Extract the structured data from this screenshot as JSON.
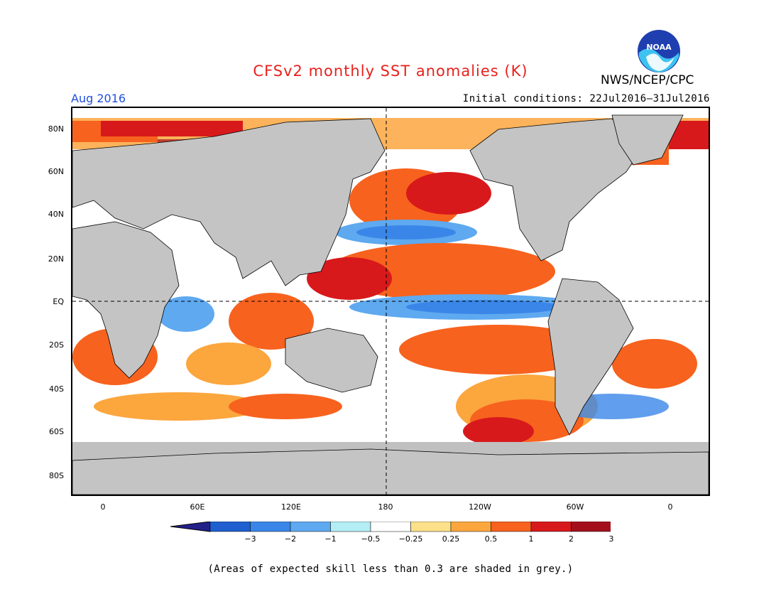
{
  "title": "CFSv2 monthly SST anomalies (K)",
  "agency": "NWS/NCEP/CPC",
  "month_label": "Aug 2016",
  "initial_conditions": "Initial conditions: 22Jul2016–31Jul2016",
  "logo_text": "NOAA",
  "footnote": "(Areas of expected skill less than 0.3 are shaded in grey.)",
  "lat_labels": [
    "80N",
    "60N",
    "40N",
    "20N",
    "EQ",
    "20S",
    "40S",
    "60S",
    "80S"
  ],
  "lon_labels": [
    "0",
    "60E",
    "120E",
    "180",
    "120W",
    "60W",
    "0"
  ],
  "colorbar": {
    "labels": [
      "−3",
      "−2",
      "−1",
      "−0.5",
      "−0.25",
      "0.25",
      "0.5",
      "1",
      "2",
      "3"
    ],
    "colors": [
      "#23208a",
      "#1f5fcf",
      "#3a86e8",
      "#5ea9f0",
      "#b4eef5",
      "#ffffff",
      "#fce18a",
      "#fca63e",
      "#f7621e",
      "#d8191c",
      "#a3101c",
      "#6e4633"
    ]
  },
  "colors": {
    "land": "#c4c4c4",
    "grey_skill": "#c0c0c0",
    "title": "#e8211c",
    "month": "#1f4fe0"
  }
}
